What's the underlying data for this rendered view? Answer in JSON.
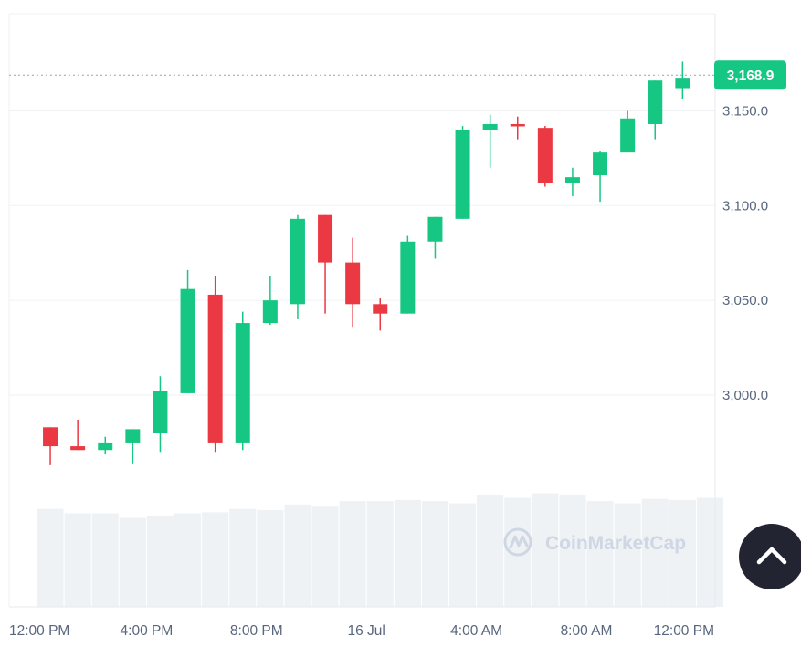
{
  "chart_data": {
    "type": "candlestick",
    "title": "",
    "xlabel": "",
    "ylabel": "",
    "ylim": [
      2930,
      3182
    ],
    "y_ticks": [
      {
        "value": 3150,
        "label": "3,150.0"
      },
      {
        "value": 3100,
        "label": "3,100.0"
      },
      {
        "value": 3050,
        "label": "3,050.0"
      },
      {
        "value": 3000,
        "label": "3,000.0"
      }
    ],
    "x_labels": [
      "12:00 PM",
      "4:00 PM",
      "8:00 PM",
      "16 Jul",
      "4:00 AM",
      "8:00 AM",
      "12:00 PM"
    ],
    "x_label_slots": [
      0,
      4,
      8,
      12,
      16,
      20,
      24
    ],
    "current_price": {
      "value": 3168.9,
      "label": "3,168.9"
    },
    "grid": true,
    "candles": [
      {
        "open": 2983,
        "high": 2983,
        "low": 2963,
        "close": 2973
      },
      {
        "open": 2973,
        "high": 2987,
        "low": 2971,
        "close": 2971
      },
      {
        "open": 2971,
        "high": 2978,
        "low": 2969,
        "close": 2975
      },
      {
        "open": 2975,
        "high": 2982,
        "low": 2964,
        "close": 2982
      },
      {
        "open": 2980,
        "high": 3010,
        "low": 2970,
        "close": 3002
      },
      {
        "open": 3001,
        "high": 3066,
        "low": 3001,
        "close": 3056
      },
      {
        "open": 3053,
        "high": 3063,
        "low": 2970,
        "close": 2975
      },
      {
        "open": 2975,
        "high": 3044,
        "low": 2971,
        "close": 3038
      },
      {
        "open": 3038,
        "high": 3063,
        "low": 3037,
        "close": 3050
      },
      {
        "open": 3048,
        "high": 3095,
        "low": 3040,
        "close": 3093
      },
      {
        "open": 3095,
        "high": 3095,
        "low": 3043,
        "close": 3070
      },
      {
        "open": 3070,
        "high": 3083,
        "low": 3036,
        "close": 3048
      },
      {
        "open": 3048,
        "high": 3051,
        "low": 3034,
        "close": 3043
      },
      {
        "open": 3043,
        "high": 3084,
        "low": 3043,
        "close": 3081
      },
      {
        "open": 3081,
        "high": 3094,
        "low": 3072,
        "close": 3094
      },
      {
        "open": 3093,
        "high": 3142,
        "low": 3093,
        "close": 3140
      },
      {
        "open": 3140,
        "high": 3148,
        "low": 3120,
        "close": 3143
      },
      {
        "open": 3143,
        "high": 3147,
        "low": 3135,
        "close": 3142
      },
      {
        "open": 3141,
        "high": 3142,
        "low": 3110,
        "close": 3112
      },
      {
        "open": 3112,
        "high": 3120,
        "low": 3105,
        "close": 3115
      },
      {
        "open": 3116,
        "high": 3129,
        "low": 3102,
        "close": 3128
      },
      {
        "open": 3128,
        "high": 3150,
        "low": 3128,
        "close": 3146
      },
      {
        "open": 3143,
        "high": 3166,
        "low": 3135,
        "close": 3166
      },
      {
        "open": 3162,
        "high": 3176,
        "low": 3156,
        "close": 3167
      }
    ],
    "volume_relative": [
      0.88,
      0.84,
      0.84,
      0.8,
      0.82,
      0.84,
      0.85,
      0.88,
      0.87,
      0.92,
      0.9,
      0.95,
      0.95,
      0.96,
      0.95,
      0.93,
      1.0,
      0.98,
      1.02,
      1.0,
      0.95,
      0.93,
      0.97,
      0.96,
      0.98
    ]
  },
  "colors": {
    "up": "#16c784",
    "down": "#ea3943",
    "volume": "#eff2f5",
    "grid": "#eff2f5",
    "axis_text": "#58667e",
    "price_badge": "#16c784",
    "watermark": "#cfd6e4",
    "scroll_button": "#222531"
  },
  "watermark": {
    "text": "CoinMarketCap"
  },
  "scroll_button": {
    "icon": "chevron-up-icon"
  }
}
